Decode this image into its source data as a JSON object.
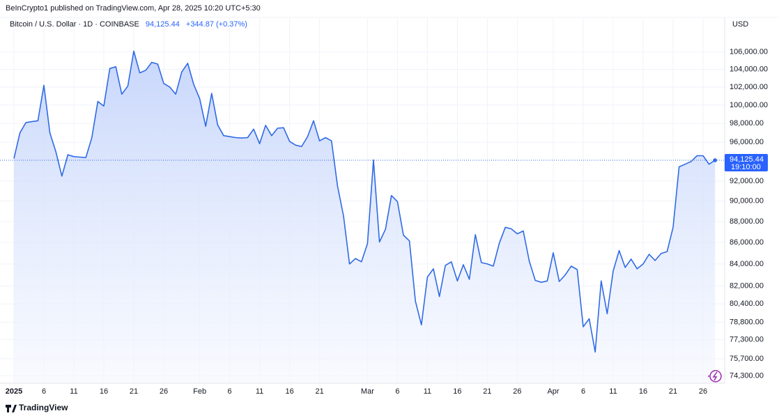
{
  "chart_data": {
    "type": "area",
    "published": "BeInCrypto1 published on TradingView.com, Apr 28, 2025 10:20 UTC+5:30",
    "title": "Bitcoin / U.S. Dollar · 1D · COINBASE",
    "price_label": "94,125.44",
    "change": "+344.87 (+0.37%)",
    "currency": "USD",
    "countdown": "19:10:00",
    "brand": "TradingView",
    "log_scale": true,
    "grid": true,
    "categories": [
      "2025",
      null,
      null,
      null,
      null,
      "6",
      null,
      null,
      null,
      null,
      "11",
      null,
      null,
      null,
      null,
      "16",
      null,
      null,
      null,
      null,
      "21",
      null,
      null,
      null,
      null,
      "26",
      null,
      null,
      null,
      null,
      null,
      "Feb",
      null,
      null,
      null,
      null,
      "6",
      null,
      null,
      null,
      null,
      "11",
      null,
      null,
      null,
      null,
      "16",
      null,
      null,
      null,
      null,
      "21",
      null,
      null,
      null,
      null,
      null,
      null,
      null,
      "Mar",
      null,
      null,
      null,
      null,
      "6",
      null,
      null,
      null,
      null,
      "11",
      null,
      null,
      null,
      null,
      "16",
      null,
      null,
      null,
      null,
      "21",
      null,
      null,
      null,
      null,
      "26",
      null,
      null,
      null,
      null,
      null,
      "Apr",
      null,
      null,
      null,
      null,
      "6",
      null,
      null,
      null,
      null,
      "11",
      null,
      null,
      null,
      null,
      "16",
      null,
      null,
      null,
      null,
      "21",
      null,
      null,
      null,
      null,
      "26",
      null,
      null
    ],
    "series": [
      {
        "name": "BTCUSD",
        "color": "#2f6ae6",
        "values": [
          94300,
          97000,
          98100,
          98200,
          98300,
          102200,
          97000,
          95000,
          92500,
          94700,
          94500,
          94450,
          94400,
          96500,
          100400,
          99900,
          104100,
          104300,
          101200,
          102100,
          106100,
          103600,
          103900,
          104800,
          104600,
          102400,
          102000,
          101200,
          103700,
          104700,
          102300,
          100700,
          97700,
          101300,
          97850,
          96700,
          96600,
          96500,
          96450,
          96500,
          97400,
          95850,
          97800,
          96700,
          97500,
          97550,
          96100,
          95700,
          95550,
          96600,
          98300,
          96150,
          96500,
          96150,
          91500,
          88550,
          84000,
          84500,
          84200,
          85900,
          94150,
          86050,
          87250,
          90550,
          89950,
          86700,
          86150,
          80640,
          78570,
          82800,
          83550,
          81050,
          83870,
          84200,
          82450,
          83930,
          82600,
          86750,
          84130,
          84000,
          83800,
          85930,
          87450,
          87300,
          86830,
          87100,
          84260,
          82500,
          82330,
          82450,
          85040,
          82400,
          83000,
          83800,
          83480,
          78400,
          79100,
          76260,
          82450,
          79540,
          83350,
          85250,
          83680,
          84450,
          83550,
          84000,
          84900,
          84320,
          84970,
          85150,
          87450,
          93450,
          93720,
          94000,
          94600,
          94600,
          93720,
          94125.44
        ]
      }
    ],
    "ylim": [
      73700,
      110100
    ],
    "yticks": [
      {
        "value": 106000,
        "label": "106,000.00"
      },
      {
        "value": 104000,
        "label": "104,000.00"
      },
      {
        "value": 102000,
        "label": "102,000.00"
      },
      {
        "value": 100000,
        "label": "100,000.00"
      },
      {
        "value": 98000,
        "label": "98,000.00"
      },
      {
        "value": 96000,
        "label": "96,000.00"
      },
      {
        "value": 92000,
        "label": "92,000.00"
      },
      {
        "value": 90000,
        "label": "90,000.00"
      },
      {
        "value": 88000,
        "label": "88,000.00"
      },
      {
        "value": 86000,
        "label": "86,000.00"
      },
      {
        "value": 84000,
        "label": "84,000.00"
      },
      {
        "value": 82000,
        "label": "82,000.00"
      },
      {
        "value": 80400,
        "label": "80,400.00"
      },
      {
        "value": 78800,
        "label": "78,800.00"
      },
      {
        "value": 77300,
        "label": "77,300.00"
      },
      {
        "value": 75700,
        "label": "75,700.00"
      },
      {
        "value": 74300,
        "label": "74,300.00"
      }
    ]
  }
}
